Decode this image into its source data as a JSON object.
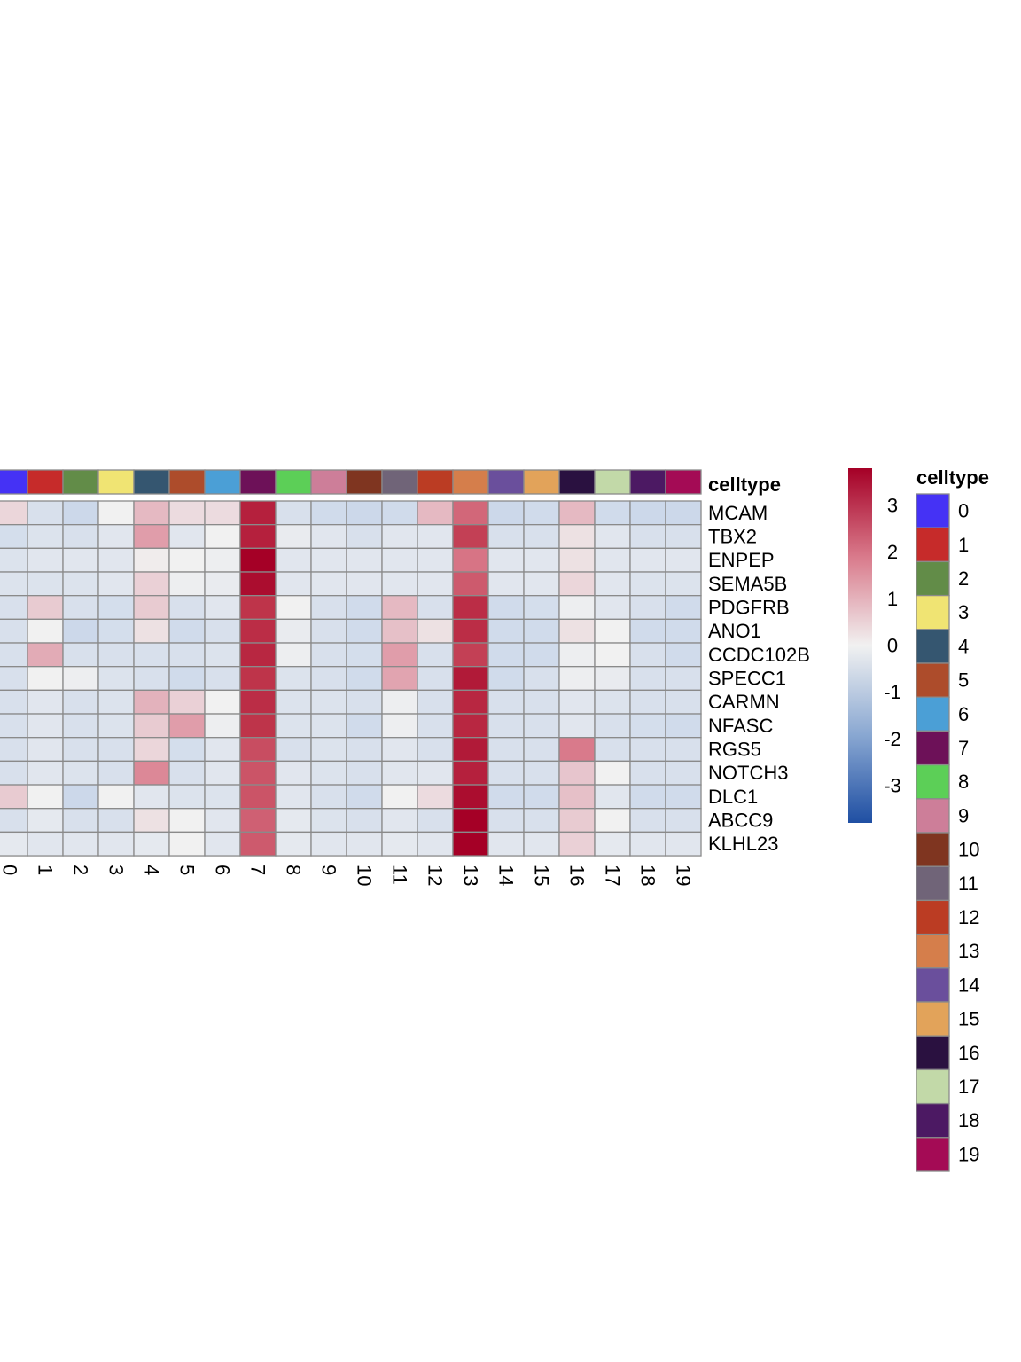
{
  "chart_data": {
    "type": "heatmap",
    "title": "",
    "xlabel": "",
    "ylabel": "",
    "annotation_label": "celltype",
    "columns": [
      "0",
      "1",
      "2",
      "3",
      "4",
      "5",
      "6",
      "7",
      "8",
      "9",
      "10",
      "11",
      "12",
      "13",
      "14",
      "15",
      "16",
      "17",
      "18",
      "19"
    ],
    "rows": [
      "MCAM",
      "TBX2",
      "ENPEP",
      "SEMA5B",
      "PDGFRB",
      "ANO1",
      "CCDC102B",
      "SPECC1",
      "CARMN",
      "NFASC",
      "RGS5",
      "NOTCH3",
      "DLC1",
      "ABCC9",
      "KLHL23"
    ],
    "values": [
      [
        0.5,
        -0.6,
        -0.9,
        0.0,
        1.0,
        0.4,
        0.4,
        3.3,
        -0.6,
        -0.8,
        -0.9,
        -0.8,
        1.0,
        2.2,
        -0.9,
        -0.8,
        1.0,
        -0.8,
        -0.9,
        -0.9
      ],
      [
        -0.7,
        -0.5,
        -0.6,
        -0.4,
        1.4,
        -0.4,
        0.0,
        3.3,
        -0.2,
        -0.4,
        -0.6,
        -0.4,
        -0.4,
        2.8,
        -0.6,
        -0.6,
        0.3,
        -0.4,
        -0.6,
        -0.6
      ],
      [
        -0.5,
        -0.4,
        -0.4,
        -0.4,
        0.1,
        0.0,
        -0.1,
        3.9,
        -0.4,
        -0.4,
        -0.4,
        -0.4,
        -0.4,
        2.0,
        -0.4,
        -0.4,
        0.3,
        -0.4,
        -0.4,
        -0.4
      ],
      [
        -0.5,
        -0.5,
        -0.5,
        -0.4,
        0.6,
        -0.1,
        -0.2,
        3.6,
        -0.4,
        -0.4,
        -0.4,
        -0.4,
        -0.4,
        2.4,
        -0.4,
        -0.4,
        0.5,
        -0.4,
        -0.5,
        -0.5
      ],
      [
        -0.6,
        0.7,
        -0.6,
        -0.7,
        0.7,
        -0.6,
        -0.4,
        3.0,
        0.0,
        -0.6,
        -0.8,
        1.0,
        -0.6,
        3.1,
        -0.8,
        -0.7,
        -0.1,
        -0.4,
        -0.6,
        -0.8
      ],
      [
        -0.6,
        0.0,
        -0.9,
        -0.7,
        0.3,
        -0.8,
        -0.6,
        3.1,
        -0.2,
        -0.6,
        -0.8,
        0.9,
        0.3,
        3.1,
        -0.8,
        -0.8,
        0.3,
        0.0,
        -0.8,
        -0.8
      ],
      [
        -0.6,
        1.2,
        -0.6,
        -0.6,
        -0.6,
        -0.6,
        -0.5,
        3.2,
        -0.1,
        -0.6,
        -0.7,
        1.4,
        -0.6,
        2.8,
        -0.8,
        -0.8,
        -0.1,
        0.0,
        -0.6,
        -0.8
      ],
      [
        -0.6,
        0.0,
        -0.1,
        -0.5,
        -0.6,
        -0.8,
        -0.6,
        3.0,
        -0.5,
        -0.6,
        -0.8,
        1.3,
        -0.6,
        3.4,
        -0.8,
        -0.6,
        -0.1,
        -0.2,
        -0.6,
        -0.6
      ],
      [
        -0.6,
        -0.4,
        -0.6,
        -0.5,
        1.1,
        0.6,
        0.0,
        3.1,
        -0.5,
        -0.5,
        -0.6,
        -0.1,
        -0.6,
        3.2,
        -0.6,
        -0.6,
        -0.4,
        -0.5,
        -0.6,
        -0.6
      ],
      [
        -0.6,
        -0.4,
        -0.6,
        -0.5,
        0.7,
        1.4,
        -0.1,
        3.0,
        -0.5,
        -0.5,
        -0.8,
        -0.1,
        -0.6,
        3.2,
        -0.6,
        -0.6,
        -0.4,
        -0.6,
        -0.7,
        -0.8
      ],
      [
        -0.6,
        -0.4,
        -0.6,
        -0.6,
        0.5,
        -0.7,
        -0.4,
        2.6,
        -0.6,
        -0.5,
        -0.6,
        -0.4,
        -0.6,
        3.4,
        -0.6,
        -0.6,
        1.9,
        -0.6,
        -0.6,
        -0.6
      ],
      [
        -0.6,
        -0.4,
        -0.5,
        -0.6,
        1.7,
        -0.6,
        -0.4,
        2.5,
        -0.4,
        -0.5,
        -0.6,
        -0.4,
        -0.4,
        3.3,
        -0.6,
        -0.6,
        0.8,
        0.0,
        -0.6,
        -0.6
      ],
      [
        0.7,
        0.0,
        -0.9,
        0.0,
        -0.4,
        -0.5,
        -0.5,
        2.5,
        -0.4,
        -0.6,
        -0.8,
        0.0,
        0.4,
        3.6,
        -0.8,
        -0.8,
        0.9,
        -0.4,
        -0.8,
        -0.8
      ],
      [
        -0.6,
        -0.3,
        -0.6,
        -0.6,
        0.3,
        0.0,
        -0.4,
        2.3,
        -0.3,
        -0.5,
        -0.6,
        -0.4,
        -0.6,
        3.8,
        -0.6,
        -0.6,
        0.7,
        0.0,
        -0.6,
        -0.6
      ],
      [
        -0.3,
        -0.4,
        -0.4,
        -0.4,
        -0.3,
        0.0,
        -0.4,
        2.4,
        -0.3,
        -0.4,
        -0.4,
        -0.3,
        -0.4,
        3.8,
        -0.4,
        -0.4,
        0.6,
        -0.3,
        -0.4,
        -0.4
      ]
    ],
    "celltype_colors": [
      "#4532f5",
      "#c62b2a",
      "#628c48",
      "#f0e473",
      "#355670",
      "#ad4c2b",
      "#4b9fd6",
      "#6d1158",
      "#5ccf57",
      "#cd7e99",
      "#7f3520",
      "#706478",
      "#bb3c23",
      "#d57e4b",
      "#6a4f9c",
      "#e2a35a",
      "#2a1140",
      "#c2d9a8",
      "#4c1963",
      "#a40b55"
    ],
    "colorbar": {
      "ticks": [
        3,
        2,
        1,
        0,
        -1,
        -2,
        -3
      ],
      "range": [
        -3.8,
        3.8
      ],
      "low_color": "#1f4fa3",
      "mid_color": "#f1f1f1",
      "high_color": "#a50026"
    },
    "legend": {
      "title": "celltype",
      "labels": [
        "0",
        "1",
        "2",
        "3",
        "4",
        "5",
        "6",
        "7",
        "8",
        "9",
        "10",
        "11",
        "12",
        "13",
        "14",
        "15",
        "16",
        "17",
        "18",
        "19"
      ],
      "placement": "right"
    },
    "grid": true
  }
}
